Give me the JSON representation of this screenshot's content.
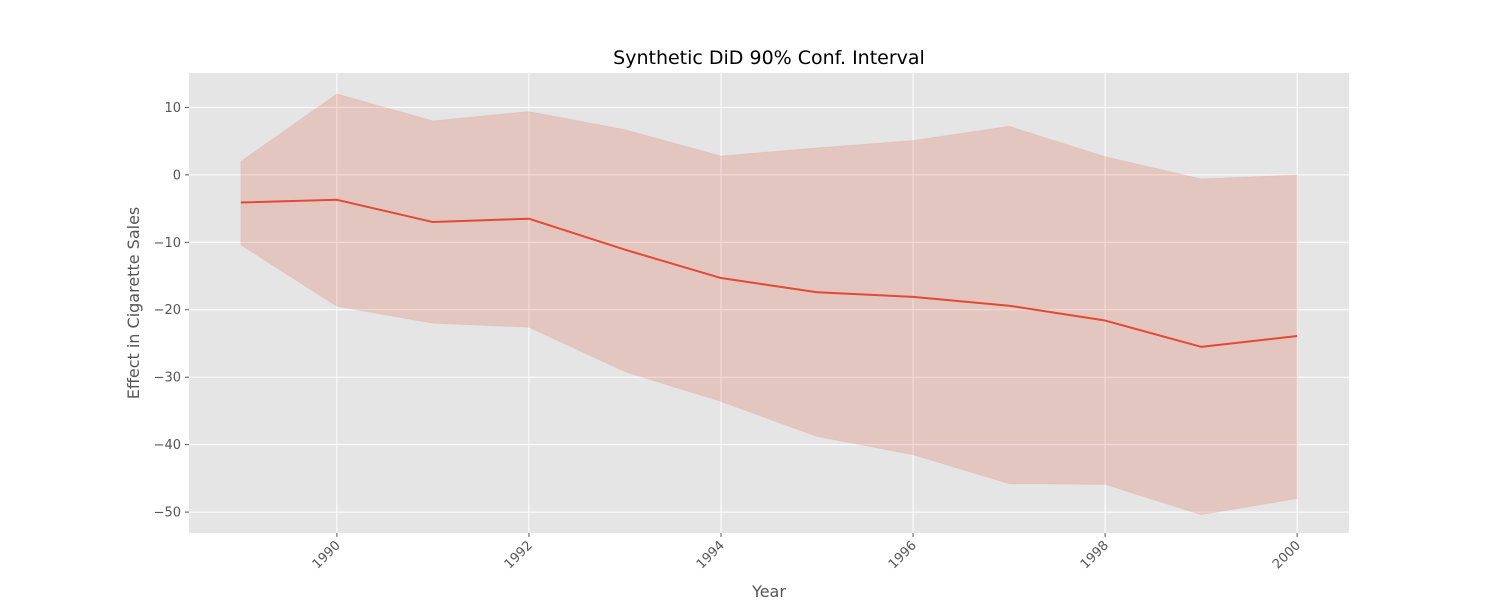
{
  "chart_data": {
    "type": "line",
    "title": "Synthetic DiD 90% Conf. Interval",
    "xlabel": "Year",
    "ylabel": "Effect in Cigarette Sales",
    "x": [
      1989,
      1990,
      1991,
      1992,
      1993,
      1994,
      1995,
      1996,
      1997,
      1998,
      1999,
      2000
    ],
    "series": [
      {
        "values": [
          -4.1,
          -3.7,
          -7.0,
          -6.5,
          -11.1,
          -15.3,
          -17.4,
          -18.1,
          -19.4,
          -21.6,
          -25.5,
          -23.9
        ]
      }
    ],
    "band": {
      "upper": [
        2.0,
        12.0,
        8.0,
        9.4,
        6.7,
        2.8,
        4.0,
        5.1,
        7.2,
        2.7,
        -0.6,
        0.0
      ],
      "lower": [
        -10.4,
        -19.5,
        -22.0,
        -22.6,
        -29.2,
        -33.6,
        -38.8,
        -41.5,
        -45.8,
        -45.9,
        -50.4,
        -48.0
      ]
    },
    "xlim": [
      1988.46,
      2000.54
    ],
    "ylim": [
      -53.1,
      15.1
    ],
    "xticks": [
      1990,
      1992,
      1994,
      1996,
      1998,
      2000
    ],
    "yticks": [
      10,
      0,
      -10,
      -20,
      -30,
      -40,
      -50
    ],
    "grid": true,
    "colors": {
      "line": "#E24A33",
      "band": "#E24A33",
      "background": "#E5E5E5",
      "grid": "#FFFFFF"
    }
  }
}
